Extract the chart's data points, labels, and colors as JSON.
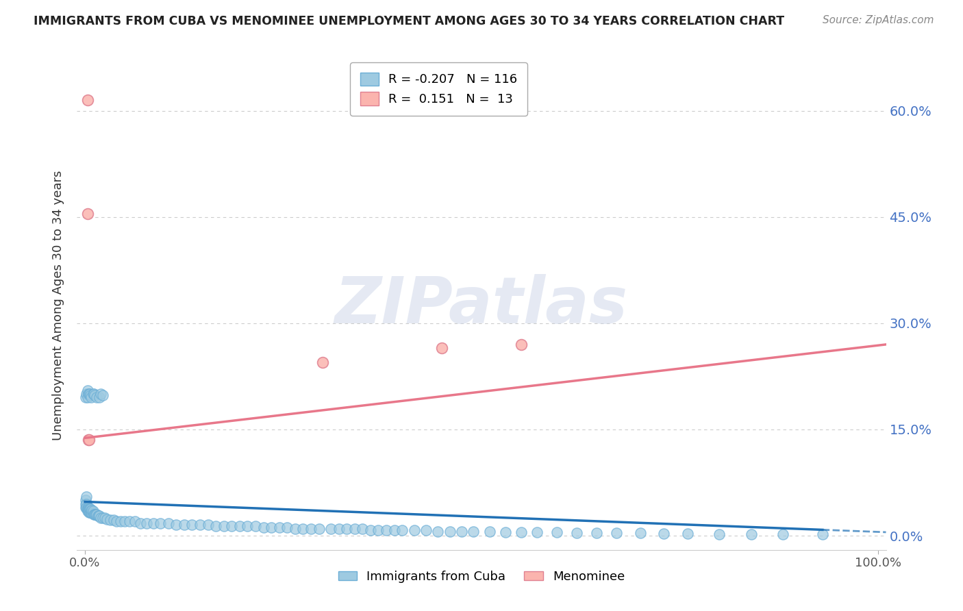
{
  "title": "IMMIGRANTS FROM CUBA VS MENOMINEE UNEMPLOYMENT AMONG AGES 30 TO 34 YEARS CORRELATION CHART",
  "source": "Source: ZipAtlas.com",
  "ylabel": "Unemployment Among Ages 30 to 34 years",
  "xlim": [
    -0.01,
    1.01
  ],
  "ylim": [
    -0.02,
    0.67
  ],
  "yticks": [
    0.0,
    0.15,
    0.3,
    0.45,
    0.6
  ],
  "ytick_labels": [
    "0.0%",
    "15.0%",
    "30.0%",
    "45.0%",
    "60.0%"
  ],
  "xticks": [
    0.0,
    1.0
  ],
  "xtick_labels": [
    "0.0%",
    "100.0%"
  ],
  "blue_scatter_x": [
    0.001,
    0.001,
    0.001,
    0.002,
    0.002,
    0.002,
    0.002,
    0.003,
    0.003,
    0.003,
    0.004,
    0.004,
    0.004,
    0.005,
    0.005,
    0.005,
    0.006,
    0.006,
    0.007,
    0.007,
    0.008,
    0.008,
    0.009,
    0.009,
    0.01,
    0.01,
    0.011,
    0.012,
    0.013,
    0.014,
    0.015,
    0.016,
    0.017,
    0.018,
    0.02,
    0.022,
    0.025,
    0.028,
    0.032,
    0.036,
    0.04,
    0.045,
    0.05,
    0.056,
    0.063,
    0.07,
    0.078,
    0.086,
    0.095,
    0.105,
    0.115,
    0.125,
    0.135,
    0.145,
    0.155,
    0.165,
    0.175,
    0.185,
    0.195,
    0.205,
    0.215,
    0.225,
    0.235,
    0.245,
    0.255,
    0.265,
    0.275,
    0.285,
    0.295,
    0.31,
    0.32,
    0.33,
    0.34,
    0.35,
    0.36,
    0.37,
    0.38,
    0.39,
    0.4,
    0.415,
    0.43,
    0.445,
    0.46,
    0.475,
    0.49,
    0.51,
    0.53,
    0.55,
    0.57,
    0.595,
    0.62,
    0.645,
    0.67,
    0.7,
    0.73,
    0.76,
    0.8,
    0.84,
    0.88,
    0.93,
    0.001,
    0.002,
    0.003,
    0.003,
    0.004,
    0.005,
    0.006,
    0.007,
    0.008,
    0.01,
    0.011,
    0.012,
    0.015,
    0.018,
    0.02,
    0.022
  ],
  "blue_scatter_y": [
    0.05,
    0.04,
    0.045,
    0.04,
    0.055,
    0.045,
    0.04,
    0.035,
    0.04,
    0.038,
    0.035,
    0.04,
    0.038,
    0.033,
    0.038,
    0.036,
    0.033,
    0.038,
    0.033,
    0.038,
    0.033,
    0.036,
    0.032,
    0.036,
    0.032,
    0.035,
    0.03,
    0.03,
    0.03,
    0.03,
    0.03,
    0.028,
    0.028,
    0.028,
    0.025,
    0.025,
    0.025,
    0.023,
    0.022,
    0.022,
    0.02,
    0.02,
    0.02,
    0.02,
    0.02,
    0.018,
    0.018,
    0.018,
    0.018,
    0.018,
    0.016,
    0.016,
    0.016,
    0.016,
    0.016,
    0.014,
    0.014,
    0.014,
    0.014,
    0.014,
    0.014,
    0.012,
    0.012,
    0.012,
    0.012,
    0.01,
    0.01,
    0.01,
    0.01,
    0.01,
    0.01,
    0.01,
    0.01,
    0.01,
    0.008,
    0.008,
    0.008,
    0.008,
    0.008,
    0.008,
    0.008,
    0.006,
    0.006,
    0.006,
    0.006,
    0.006,
    0.005,
    0.005,
    0.005,
    0.005,
    0.004,
    0.004,
    0.004,
    0.004,
    0.003,
    0.003,
    0.002,
    0.002,
    0.002,
    0.002,
    0.195,
    0.2,
    0.205,
    0.195,
    0.2,
    0.2,
    0.2,
    0.198,
    0.195,
    0.2,
    0.2,
    0.198,
    0.195,
    0.195,
    0.2,
    0.198
  ],
  "pink_scatter_x": [
    0.003,
    0.003,
    0.004,
    0.005,
    0.3,
    0.45,
    0.55
  ],
  "pink_scatter_y": [
    0.615,
    0.455,
    0.135,
    0.135,
    0.245,
    0.265,
    0.27
  ],
  "blue_line_x0": 0.0,
  "blue_line_x1": 1.01,
  "blue_line_y0": 0.048,
  "blue_line_y1": 0.005,
  "blue_line_solid_end": 0.93,
  "pink_line_x0": 0.0,
  "pink_line_x1": 1.01,
  "pink_line_y0": 0.138,
  "pink_line_y1": 0.27,
  "watermark_text": "ZIPatlas",
  "blue_color": "#9ecae1",
  "blue_edge_color": "#6baed6",
  "pink_color": "#fbb4ae",
  "pink_edge_color": "#e08090",
  "blue_line_color": "#2171b5",
  "pink_line_color": "#e8778a",
  "background_color": "#ffffff",
  "grid_color": "#cccccc",
  "title_color": "#222222",
  "source_color": "#888888",
  "ylabel_color": "#333333",
  "right_tick_color": "#4472c4"
}
